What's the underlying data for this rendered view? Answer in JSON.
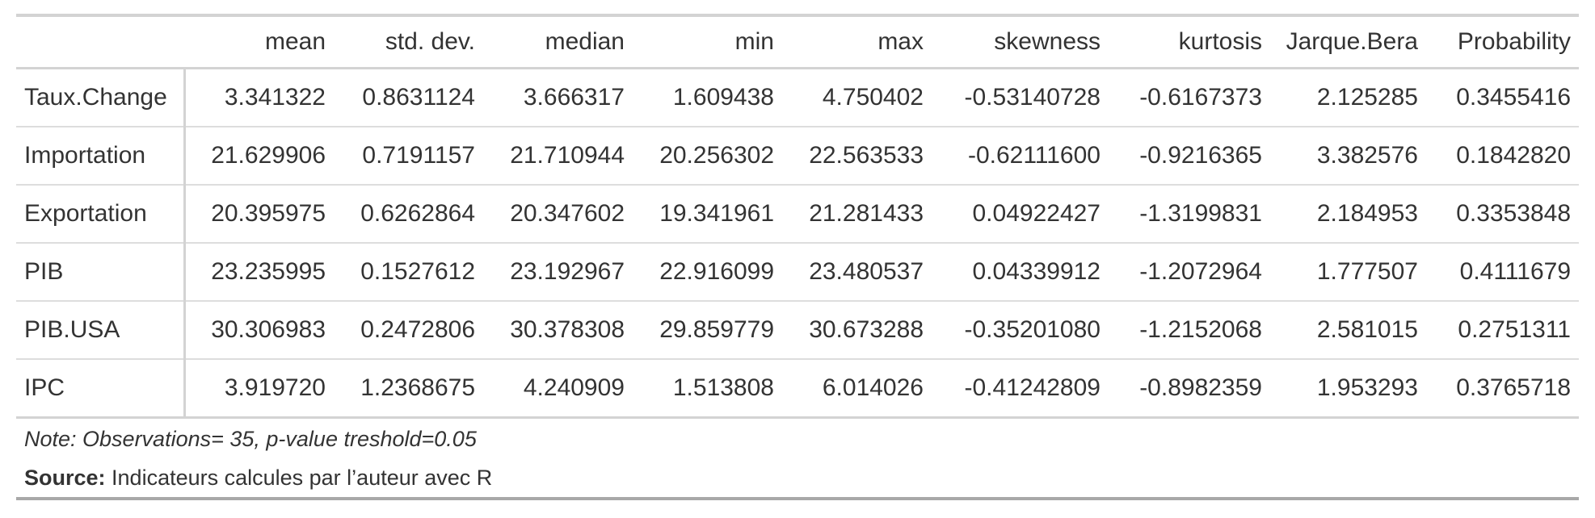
{
  "table": {
    "columns": [
      "",
      "mean",
      "std. dev.",
      "median",
      "min",
      "max",
      "skewness",
      "kurtosis",
      "Jarque.Bera",
      "Probability"
    ],
    "rows": [
      {
        "label": "Taux.Change",
        "values": [
          "3.341322",
          "0.8631124",
          "3.666317",
          "1.609438",
          "4.750402",
          "-0.53140728",
          "-0.6167373",
          "2.125285",
          "0.3455416"
        ]
      },
      {
        "label": "Importation",
        "values": [
          "21.629906",
          "0.7191157",
          "21.710944",
          "20.256302",
          "22.563533",
          "-0.62111600",
          "-0.9216365",
          "3.382576",
          "0.1842820"
        ]
      },
      {
        "label": "Exportation",
        "values": [
          "20.395975",
          "0.6262864",
          "20.347602",
          "19.341961",
          "21.281433",
          "0.04922427",
          "-1.3199831",
          "2.184953",
          "0.3353848"
        ]
      },
      {
        "label": "PIB",
        "values": [
          "23.235995",
          "0.1527612",
          "23.192967",
          "22.916099",
          "23.480537",
          "0.04339912",
          "-1.2072964",
          "1.777507",
          "0.4111679"
        ]
      },
      {
        "label": "PIB.USA",
        "values": [
          "30.306983",
          "0.2472806",
          "30.378308",
          "29.859779",
          "30.673288",
          "-0.35201080",
          "-1.2152068",
          "2.581015",
          "0.2751311"
        ]
      },
      {
        "label": "IPC",
        "values": [
          "3.919720",
          "1.2368675",
          "4.240909",
          "1.513808",
          "6.014026",
          "-0.41242809",
          "-0.8982359",
          "1.953293",
          "0.3765718"
        ]
      }
    ]
  },
  "footnotes": {
    "note": "Note: Observations= 35, p-value treshold=0.05",
    "source_label": "Source:",
    "source_text": " Indicateurs calcules par l’auteur avec R"
  }
}
